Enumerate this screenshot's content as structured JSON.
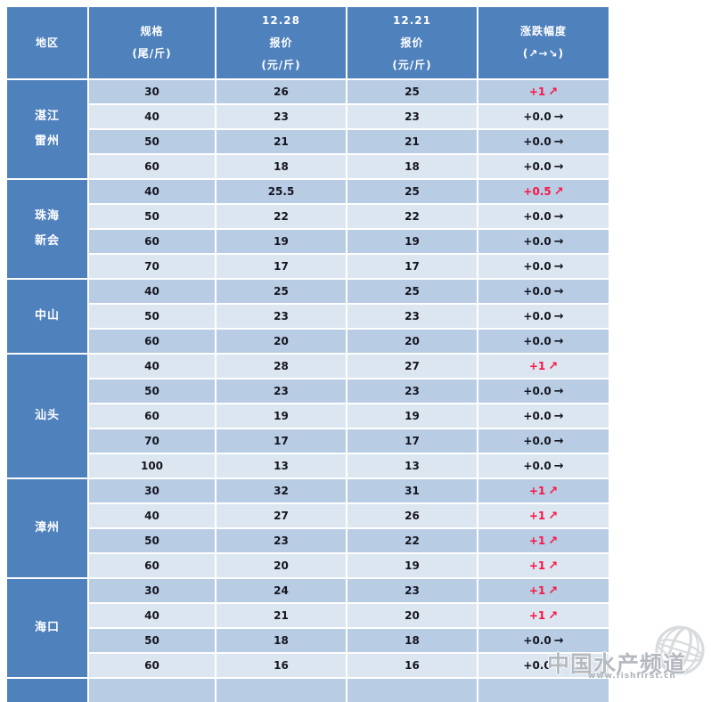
{
  "table": {
    "headers": {
      "region": "地区",
      "spec": [
        "规格",
        "(尾/斤)"
      ],
      "price_new": [
        "12.28",
        "报价",
        "(元/斤)"
      ],
      "price_old": [
        "12.21",
        "报价",
        "(元/斤)"
      ],
      "change": [
        "涨跌幅度",
        "(↗→↘)"
      ]
    },
    "arrows": {
      "up": "↗",
      "flat": "→",
      "down": "↘"
    },
    "partial_next_group_visible": true
  },
  "chart_data": {
    "type": "table",
    "columns": [
      "地区",
      "规格(尾/斤)",
      "12.28报价(元/斤)",
      "12.21报价(元/斤)",
      "涨跌幅度(↗→↘)"
    ],
    "groups": [
      {
        "region": "湛江雷州",
        "region_lines": [
          "湛江",
          "雷州"
        ],
        "rows": [
          {
            "spec": "30",
            "price_new": "26",
            "price_old": "25",
            "change": "+1",
            "dir": "up"
          },
          {
            "spec": "40",
            "price_new": "23",
            "price_old": "23",
            "change": "+0.0",
            "dir": "flat"
          },
          {
            "spec": "50",
            "price_new": "21",
            "price_old": "21",
            "change": "+0.0",
            "dir": "flat"
          },
          {
            "spec": "60",
            "price_new": "18",
            "price_old": "18",
            "change": "+0.0",
            "dir": "flat"
          }
        ]
      },
      {
        "region": "珠海新会",
        "region_lines": [
          "珠海",
          "新会"
        ],
        "rows": [
          {
            "spec": "40",
            "price_new": "25.5",
            "price_old": "25",
            "change": "+0.5",
            "dir": "up"
          },
          {
            "spec": "50",
            "price_new": "22",
            "price_old": "22",
            "change": "+0.0",
            "dir": "flat"
          },
          {
            "spec": "60",
            "price_new": "19",
            "price_old": "19",
            "change": "+0.0",
            "dir": "flat"
          },
          {
            "spec": "70",
            "price_new": "17",
            "price_old": "17",
            "change": "+0.0",
            "dir": "flat"
          }
        ]
      },
      {
        "region": "中山",
        "region_lines": [
          "中山"
        ],
        "rows": [
          {
            "spec": "40",
            "price_new": "25",
            "price_old": "25",
            "change": "+0.0",
            "dir": "flat"
          },
          {
            "spec": "50",
            "price_new": "23",
            "price_old": "23",
            "change": "+0.0",
            "dir": "flat"
          },
          {
            "spec": "60",
            "price_new": "20",
            "price_old": "20",
            "change": "+0.0",
            "dir": "flat"
          }
        ]
      },
      {
        "region": "汕头",
        "region_lines": [
          "汕头"
        ],
        "rows": [
          {
            "spec": "40",
            "price_new": "28",
            "price_old": "27",
            "change": "+1",
            "dir": "up"
          },
          {
            "spec": "50",
            "price_new": "23",
            "price_old": "23",
            "change": "+0.0",
            "dir": "flat"
          },
          {
            "spec": "60",
            "price_new": "19",
            "price_old": "19",
            "change": "+0.0",
            "dir": "flat"
          },
          {
            "spec": "70",
            "price_new": "17",
            "price_old": "17",
            "change": "+0.0",
            "dir": "flat"
          },
          {
            "spec": "100",
            "price_new": "13",
            "price_old": "13",
            "change": "+0.0",
            "dir": "flat"
          }
        ]
      },
      {
        "region": "漳州",
        "region_lines": [
          "漳州"
        ],
        "rows": [
          {
            "spec": "30",
            "price_new": "32",
            "price_old": "31",
            "change": "+1",
            "dir": "up"
          },
          {
            "spec": "40",
            "price_new": "27",
            "price_old": "26",
            "change": "+1",
            "dir": "up"
          },
          {
            "spec": "50",
            "price_new": "23",
            "price_old": "22",
            "change": "+1",
            "dir": "up"
          },
          {
            "spec": "60",
            "price_new": "20",
            "price_old": "19",
            "change": "+1",
            "dir": "up"
          }
        ]
      },
      {
        "region": "海口",
        "region_lines": [
          "海口"
        ],
        "rows": [
          {
            "spec": "30",
            "price_new": "24",
            "price_old": "23",
            "change": "+1",
            "dir": "up"
          },
          {
            "spec": "40",
            "price_new": "21",
            "price_old": "20",
            "change": "+1",
            "dir": "up"
          },
          {
            "spec": "50",
            "price_new": "18",
            "price_old": "18",
            "change": "+0.0",
            "dir": "flat"
          },
          {
            "spec": "60",
            "price_new": "16",
            "price_old": "16",
            "change": "+0.0",
            "dir": "flat"
          }
        ]
      }
    ]
  },
  "watermark": {
    "title": "中国水产频道",
    "url": "www.fishfirst.cn"
  },
  "colors": {
    "header_bg": "#4f81bd",
    "row_dark": "#b8cce4",
    "row_light": "#dce6f1",
    "text_dark": "#15151f",
    "up_red": "#fa1444",
    "watermark_gray": "#a8aeb5"
  }
}
